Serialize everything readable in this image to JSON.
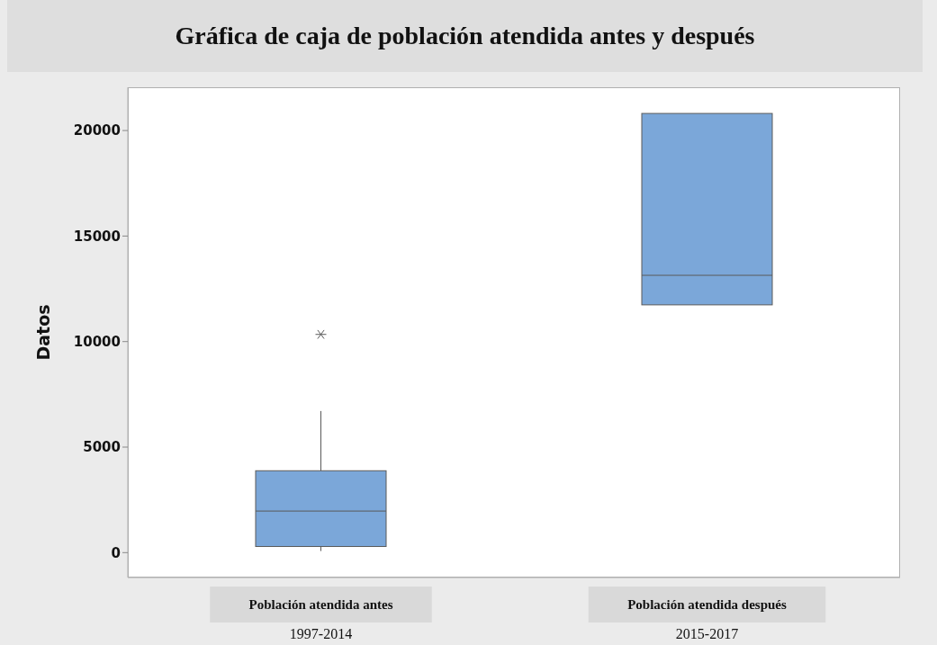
{
  "chart_data": {
    "type": "box",
    "title": "Gráfica de caja de población atendida antes y después",
    "ylabel": "Datos",
    "categories": [
      "Población atendida antes",
      "Población atendida después"
    ],
    "annotations": [
      "1997-2014",
      "2015-2017"
    ],
    "color": "#7ba7d9",
    "boxes": [
      {
        "low": 75,
        "q1": 290,
        "median": 1970,
        "q3": 3880,
        "high": 6710,
        "outliers": [
          10340
        ]
      },
      {
        "low": 11740,
        "q1": 11740,
        "median": 13140,
        "q3": 20810,
        "high": 20810
      }
    ],
    "ylim": [
      -1180,
      22050
    ],
    "yticks": [
      0,
      5000,
      10000,
      15000,
      20000
    ],
    "legend": false
  }
}
